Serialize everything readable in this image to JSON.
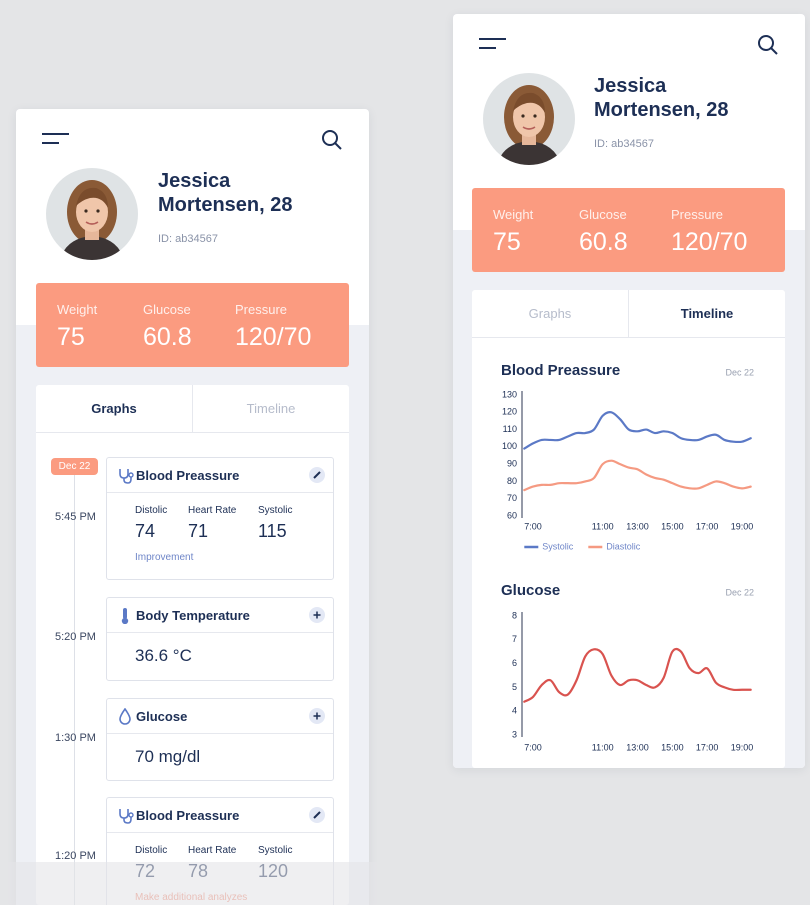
{
  "left": {
    "profile": {
      "name": "Jessica Mortensen, 28",
      "id": "ID: ab34567"
    },
    "stats": [
      {
        "label": "Weight",
        "value": "75"
      },
      {
        "label": "Glucose",
        "value": "60.8"
      },
      {
        "label": "Pressure",
        "value": "120/70"
      }
    ],
    "tabs": [
      "Graphs",
      "Timeline"
    ],
    "date_badge": "Dec 22",
    "timeline": [
      {
        "time": "5:45 PM",
        "title": "Blood Preassure",
        "metrics": [
          {
            "label": "Distolic",
            "value": "74"
          },
          {
            "label": "Heart Rate",
            "value": "71"
          },
          {
            "label": "Systolic",
            "value": "115"
          }
        ],
        "note": "Improvement"
      },
      {
        "time": "5:20 PM",
        "title": "Body Temperature",
        "value": "36.6 °C"
      },
      {
        "time": "1:30 PM",
        "title": "Glucose",
        "value": "70 mg/dl"
      },
      {
        "time": "1:20 PM",
        "title": "Blood Preassure",
        "metrics": [
          {
            "label": "Distolic",
            "value": "72"
          },
          {
            "label": "Heart Rate",
            "value": "78"
          },
          {
            "label": "Systolic",
            "value": "120"
          }
        ],
        "note": "Make additional analyzes"
      }
    ]
  },
  "right": {
    "profile": {
      "name": "Jessica Mortensen, 28",
      "id": "ID: ab34567"
    },
    "stats": [
      {
        "label": "Weight",
        "value": "75"
      },
      {
        "label": "Glucose",
        "value": "60.8"
      },
      {
        "label": "Pressure",
        "value": "120/70"
      }
    ],
    "tabs": [
      "Graphs",
      "Timeline"
    ]
  },
  "chart_data": [
    {
      "type": "line",
      "title": "Blood Preassure",
      "subtitle": "Dec 22",
      "x": [
        6.5,
        7,
        7.5,
        8,
        8.5,
        9,
        9.5,
        10,
        10.5,
        11,
        11.5,
        12,
        12.5,
        13,
        13.5,
        14,
        14.5,
        15,
        15.5,
        16,
        16.5,
        17,
        17.5,
        18,
        18.5,
        19,
        19.5
      ],
      "xlim": [
        6.5,
        19.5
      ],
      "xticks": [
        {
          "value": 7,
          "label": "7:00"
        },
        {
          "value": 11,
          "label": "11:00"
        },
        {
          "value": 13,
          "label": "13:00"
        },
        {
          "value": 15,
          "label": "15:00"
        },
        {
          "value": 17,
          "label": "17:00"
        },
        {
          "value": 19,
          "label": "19:00"
        }
      ],
      "ylim": [
        60,
        130
      ],
      "yticks": [
        60,
        70,
        80,
        90,
        100,
        110,
        120,
        130
      ],
      "legend": "bottom-left",
      "series": [
        {
          "name": "Systolic",
          "color": "#5b79c6",
          "values": [
            99,
            102,
            104,
            104,
            104,
            106,
            108,
            108,
            110,
            118,
            120,
            116,
            110,
            109,
            110,
            108,
            109,
            108,
            105,
            104,
            104,
            106,
            107,
            104,
            103,
            103,
            105
          ]
        },
        {
          "name": "Diastolic",
          "color": "#f59a82",
          "values": [
            75,
            77,
            78,
            78,
            79,
            79,
            79,
            80,
            82,
            90,
            92,
            90,
            88,
            87,
            84,
            82,
            81,
            79,
            77,
            76,
            76,
            78,
            80,
            79,
            77,
            76,
            77
          ]
        }
      ]
    },
    {
      "type": "line",
      "title": "Glucose",
      "subtitle": "Dec 22",
      "x": [
        6.5,
        7,
        7.5,
        8,
        8.5,
        9,
        9.5,
        10,
        10.5,
        11,
        11.5,
        12,
        12.5,
        13,
        13.5,
        14,
        14.5,
        15,
        15.5,
        16,
        16.5,
        17,
        17.5,
        18,
        18.5,
        19,
        19.5
      ],
      "xlim": [
        6.5,
        19.5
      ],
      "xticks": [
        {
          "value": 7,
          "label": "7:00"
        },
        {
          "value": 11,
          "label": "11:00"
        },
        {
          "value": 13,
          "label": "13:00"
        },
        {
          "value": 15,
          "label": "15:00"
        },
        {
          "value": 17,
          "label": "17:00"
        },
        {
          "value": 19,
          "label": "19:00"
        }
      ],
      "ylim": [
        3,
        8
      ],
      "yticks": [
        3,
        4,
        5,
        6,
        7,
        8
      ],
      "color": "#d9534f",
      "values": [
        4.4,
        4.6,
        5.1,
        5.3,
        4.8,
        4.7,
        5.3,
        6.3,
        6.6,
        6.4,
        5.5,
        5.1,
        5.3,
        5.3,
        5.1,
        5.0,
        5.4,
        6.5,
        6.5,
        5.8,
        5.6,
        5.8,
        5.2,
        5.0,
        4.9,
        4.9,
        4.9
      ]
    }
  ]
}
